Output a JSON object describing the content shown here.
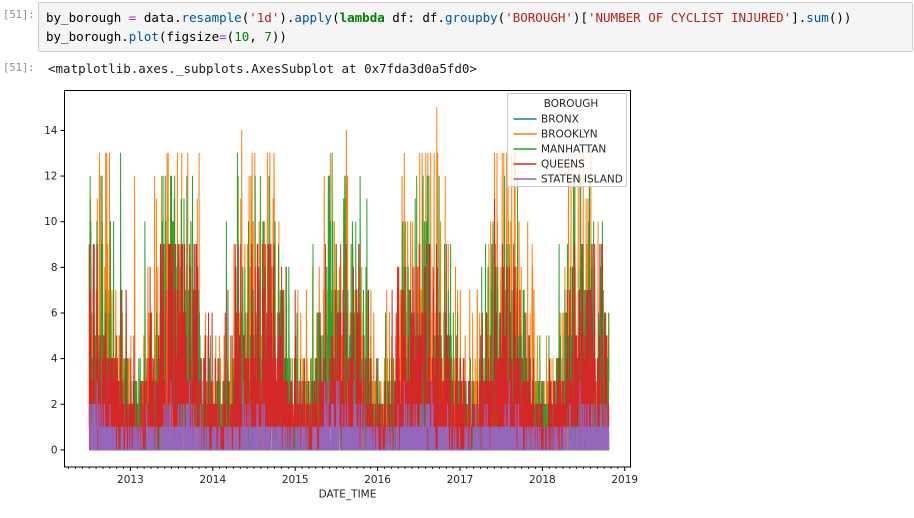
{
  "notebook": {
    "input_prompt": "[51]:",
    "output_prompt": "[51]:",
    "output_text": "<matplotlib.axes._subplots.AxesSubplot at 0x7fda3d0a5fd0>",
    "code": {
      "lines": [
        [
          [
            "by_borough ",
            "pl"
          ],
          [
            "=",
            "op"
          ],
          [
            " data",
            "pl"
          ],
          [
            ".",
            "pl"
          ],
          [
            "resample",
            "pr"
          ],
          [
            "(",
            "pl"
          ],
          [
            "'1d'",
            "st"
          ],
          [
            ")",
            "pl"
          ],
          [
            ".",
            "pl"
          ],
          [
            "apply",
            "pr"
          ],
          [
            "(",
            "pl"
          ],
          [
            "lambda",
            "kw"
          ],
          [
            " df: df",
            "pl"
          ],
          [
            ".",
            "pl"
          ],
          [
            "groupby",
            "pr"
          ],
          [
            "(",
            "pl"
          ],
          [
            "'BOROUGH'",
            "st"
          ],
          [
            ")[",
            "pl"
          ],
          [
            "'NUMBER OF CYCLIST INJURED'",
            "st"
          ],
          [
            "].",
            "pl"
          ],
          [
            "sum",
            "pr"
          ],
          [
            "())",
            "pl"
          ]
        ],
        [
          [
            "by_borough",
            "pl"
          ],
          [
            ".",
            "pl"
          ],
          [
            "plot",
            "pr"
          ],
          [
            "(figsize",
            "pl"
          ],
          [
            "=",
            "op"
          ],
          [
            "(",
            "pl"
          ],
          [
            "10",
            "nu"
          ],
          [
            ", ",
            "pl"
          ],
          [
            "7",
            "nu"
          ],
          [
            "))",
            "pl"
          ]
        ]
      ]
    },
    "syntax_colors": {
      "plain": "#000000",
      "operator": "#aa22ff",
      "method": "#0055aa",
      "string": "#ba2121",
      "keyword": "#008000",
      "number": "#008000"
    }
  },
  "chart_data": {
    "type": "line",
    "title": "",
    "xlabel": "DATE_TIME",
    "ylabel": "",
    "grid": false,
    "legend_title": "BOROUGH",
    "legend_position": "upper right",
    "frequency": "daily",
    "x_start_year": 2012.5,
    "x_end_year": 2018.81,
    "xlim": [
      2012.2,
      2019.07
    ],
    "ylim": [
      -0.75,
      15.75
    ],
    "xticks": [
      2013,
      2014,
      2015,
      2016,
      2017,
      2018,
      2019
    ],
    "yticks": [
      0,
      2,
      4,
      6,
      8,
      10,
      12,
      14
    ],
    "axis_color": "#000000",
    "seed": 20180919,
    "series": [
      {
        "name": "BRONX",
        "color": "#1f77b4",
        "winter_mean": 0.5,
        "summer_mean": 1.8,
        "max": 6,
        "peaks": []
      },
      {
        "name": "BROOKLYN",
        "color": "#ff7f0e",
        "winter_mean": 1.6,
        "summer_mean": 5.0,
        "max": 13,
        "peaks": [
          [
            2014.35,
            14
          ],
          [
            2015.62,
            14
          ],
          [
            2016.72,
            15
          ],
          [
            2017.66,
            13
          ],
          [
            2013.05,
            12
          ]
        ]
      },
      {
        "name": "MANHATTAN",
        "color": "#2ca02c",
        "winter_mean": 1.4,
        "summer_mean": 4.3,
        "max": 12,
        "peaks": [
          [
            2012.88,
            13
          ],
          [
            2014.3,
            13
          ],
          [
            2015.45,
            13
          ]
        ]
      },
      {
        "name": "QUEENS",
        "color": "#d62728",
        "winter_mean": 1.2,
        "summer_mean": 3.8,
        "max": 9,
        "peaks": [
          [
            2017.42,
            11
          ]
        ]
      },
      {
        "name": "STATEN ISLAND",
        "color": "#9467bd",
        "winter_mean": 0.3,
        "summer_mean": 0.85,
        "max": 3,
        "peaks": []
      }
    ]
  }
}
